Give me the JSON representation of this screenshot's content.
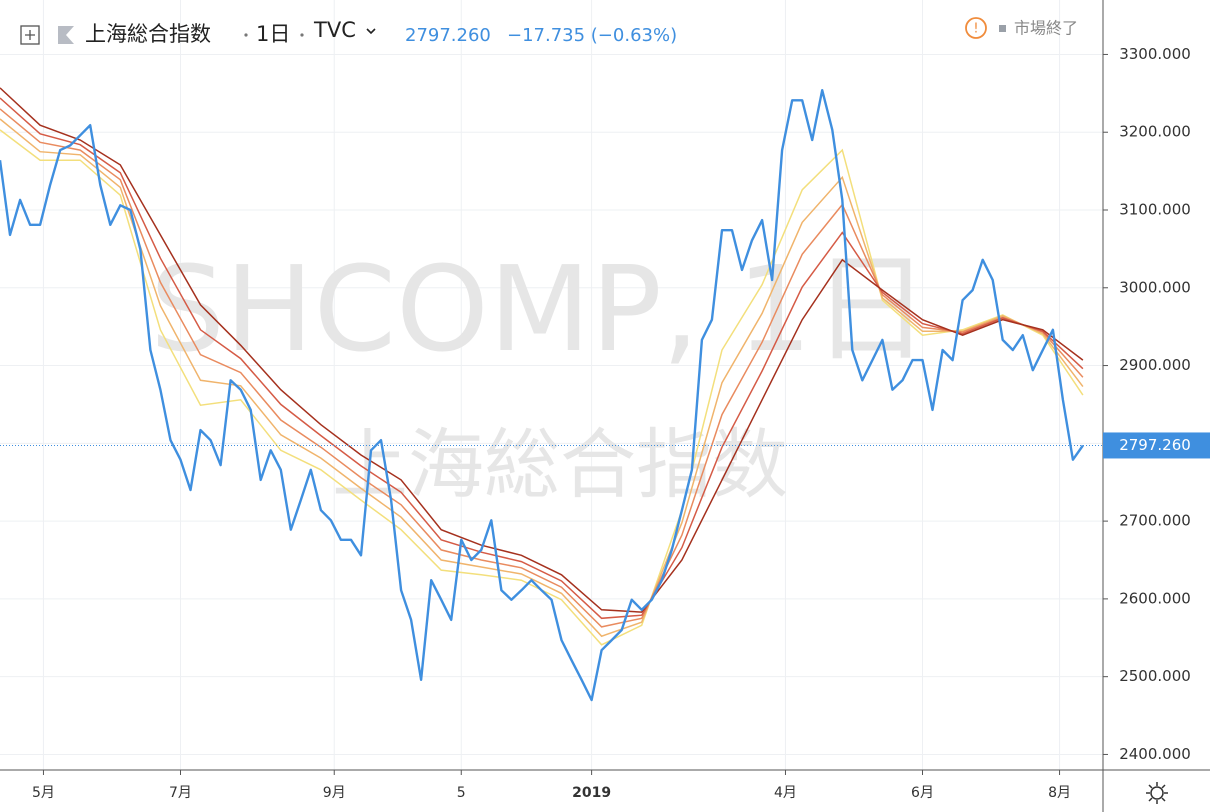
{
  "header": {
    "title": "上海総合指数",
    "interval": "1日",
    "source": "TVC",
    "last_price": "2797.260",
    "change": "−17.735 (−0.63%)",
    "status": "市場終了"
  },
  "watermark": {
    "symbol": "SHCOMP, 1日",
    "name": "上海総合指数"
  },
  "chart_data": {
    "type": "line",
    "x": [
      0,
      3,
      6,
      9,
      12,
      15,
      18,
      21,
      24,
      27,
      30,
      33,
      36,
      39,
      42,
      45,
      48,
      51,
      54,
      57,
      60,
      63,
      66,
      69,
      72,
      75,
      78,
      81,
      84,
      87,
      90,
      93,
      96,
      99,
      102,
      105,
      108,
      111,
      114,
      117,
      120,
      123,
      126,
      129,
      132,
      135,
      138,
      141,
      144,
      147,
      150,
      153,
      156,
      159,
      162,
      165,
      168,
      171,
      174,
      177,
      180,
      183,
      186,
      189,
      192,
      195,
      198,
      201,
      204,
      207,
      210,
      213,
      216,
      219,
      222,
      225,
      228,
      231,
      234,
      237,
      240,
      243,
      246,
      249,
      252,
      255,
      258,
      261,
      264,
      267,
      270,
      273,
      276,
      279,
      282,
      285,
      288,
      291,
      294,
      297,
      300,
      303,
      306,
      309,
      312,
      315,
      318,
      321,
      324
    ],
    "series": [
      {
        "color": "#3f8fdf",
        "values": [
          3164,
          3068,
          3113,
          3081,
          3081,
          3132,
          3177,
          3183,
          3196,
          3209,
          3132,
          3081,
          3106,
          3100,
          3049,
          2920,
          2869,
          2804,
          2779,
          2740,
          2817,
          2804,
          2772,
          2881,
          2869,
          2843,
          2753,
          2791,
          2766,
          2689,
          2727,
          2766,
          2714,
          2701,
          2676,
          2676,
          2656,
          2791,
          2804,
          2727,
          2611,
          2573,
          2496,
          2624,
          2599,
          2573,
          2676,
          2650,
          2663,
          2701,
          2611,
          2599,
          2611,
          2624,
          2611,
          2599,
          2547,
          2521,
          2496,
          2470,
          2534,
          2547,
          2560,
          2599,
          2586,
          2599,
          2624,
          2663,
          2714,
          2766,
          2933,
          2959,
          3074,
          3074,
          3023,
          3061,
          3087,
          3010,
          3177,
          3241,
          3241,
          3190,
          3254,
          3203,
          3113,
          2920,
          2881,
          2907,
          2933,
          2869,
          2881,
          2907,
          2907,
          2843,
          2920,
          2907,
          2984,
          2997,
          3036,
          3010,
          2933,
          2920,
          2939,
          2894,
          2920,
          2946,
          2856,
          2779,
          2797.26
        ]
      }
    ],
    "ribbon": {
      "x": [
        0,
        12,
        24,
        36,
        48,
        60,
        72,
        84,
        96,
        108,
        120,
        132,
        144,
        156,
        168,
        180,
        192,
        204,
        216,
        228,
        240,
        252,
        264,
        276,
        288,
        300,
        312,
        324
      ],
      "series": [
        {
          "color": "#f3df7c",
          "values": [
            3203,
            3164,
            3164,
            3119,
            2946,
            2849,
            2856,
            2791,
            2766,
            2727,
            2689,
            2637,
            2631,
            2624,
            2599,
            2541,
            2566,
            2714,
            2920,
            3004,
            3126,
            3177,
            2984,
            2939,
            2946,
            2965,
            2939,
            2862
          ]
        },
        {
          "color": "#f0b46c",
          "values": [
            3217,
            3175,
            3171,
            3129,
            2977,
            2881,
            2874,
            2811,
            2781,
            2742,
            2705,
            2650,
            2641,
            2632,
            2607,
            2552,
            2570,
            2698,
            2878,
            2967,
            3084,
            3142,
            2987,
            2944,
            2944,
            2964,
            2941,
            2873
          ]
        },
        {
          "color": "#e98b5f",
          "values": [
            3230,
            3187,
            3177,
            3139,
            3007,
            2914,
            2891,
            2830,
            2795,
            2756,
            2721,
            2663,
            2650,
            2640,
            2615,
            2564,
            2575,
            2682,
            2837,
            2930,
            3043,
            3107,
            2991,
            2949,
            2943,
            2962,
            2943,
            2885
          ]
        },
        {
          "color": "#d55b46",
          "values": [
            3244,
            3198,
            3184,
            3148,
            3038,
            2946,
            2909,
            2850,
            2810,
            2771,
            2737,
            2676,
            2660,
            2648,
            2623,
            2575,
            2579,
            2666,
            2795,
            2893,
            3001,
            3071,
            2994,
            2954,
            2941,
            2961,
            2944,
            2896
          ]
        },
        {
          "color": "#a5311e",
          "values": [
            3257,
            3209,
            3190,
            3158,
            3068,
            2978,
            2926,
            2869,
            2824,
            2785,
            2753,
            2689,
            2669,
            2656,
            2631,
            2586,
            2583,
            2650,
            2753,
            2856,
            2959,
            3036,
            2997,
            2959,
            2939,
            2959,
            2946,
            2907
          ]
        }
      ]
    },
    "xlim": [
      0,
      330
    ],
    "xticks": [
      {
        "value": 13,
        "label": "5月"
      },
      {
        "value": 54,
        "label": "7月"
      },
      {
        "value": 100,
        "label": "9月"
      },
      {
        "value": 138,
        "label": "5"
      },
      {
        "value": 177,
        "label": "2019"
      },
      {
        "value": 235,
        "label": "4月"
      },
      {
        "value": 276,
        "label": "6月"
      },
      {
        "value": 317,
        "label": "8月"
      }
    ],
    "ylim": [
      2380,
      3370
    ],
    "yticks": [
      {
        "value": 2400,
        "label": "2400.000"
      },
      {
        "value": 2500,
        "label": "2500.000"
      },
      {
        "value": 2600,
        "label": "2600.000"
      },
      {
        "value": 2700,
        "label": "2700.000"
      },
      {
        "value": 2800,
        "label": "2800.000"
      },
      {
        "value": 2900,
        "label": "2900.000"
      },
      {
        "value": 3000,
        "label": "3000.000"
      },
      {
        "value": 3100,
        "label": "3100.000"
      },
      {
        "value": 3200,
        "label": "3200.000"
      },
      {
        "value": 3300,
        "label": "3300.000"
      }
    ],
    "grid": true
  }
}
